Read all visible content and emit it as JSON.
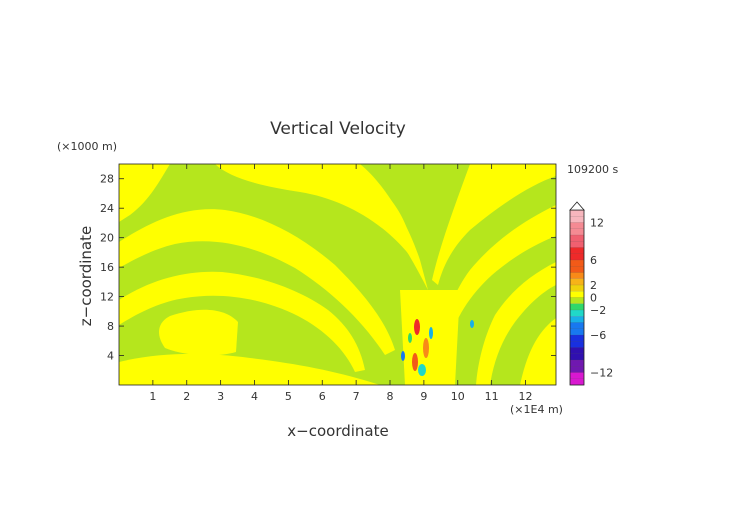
{
  "chart_data": {
    "type": "heatmap",
    "title": "Vertical Velocity",
    "xlabel": "x−coordinate",
    "ylabel": "z−coordinate",
    "x_scale_label": "(×1E4 m)",
    "y_scale_label": "(×1000 m)",
    "time_label": "109200 s",
    "xlim": [
      0,
      12.9
    ],
    "ylim": [
      0,
      30
    ],
    "x_ticks": [
      "1",
      "2",
      "3",
      "4",
      "5",
      "6",
      "7",
      "8",
      "9",
      "10",
      "11",
      "12"
    ],
    "y_ticks": [
      "4",
      "8",
      "12",
      "16",
      "20",
      "24",
      "28"
    ],
    "colorbar": {
      "range": [
        -14,
        14
      ],
      "extend": "max",
      "tick_labels": [
        "12",
        "6",
        "2",
        "0",
        "−2",
        "−6",
        "−12"
      ],
      "tick_values": [
        12,
        6,
        2,
        0,
        -2,
        -6,
        -12
      ],
      "level_colors": [
        {
          "from": 12,
          "to": 14,
          "color": "#f7b6bd"
        },
        {
          "from": 10,
          "to": 12,
          "color": "#f58a93"
        },
        {
          "from": 8,
          "to": 10,
          "color": "#f06070"
        },
        {
          "from": 6,
          "to": 8,
          "color": "#ee2a2a"
        },
        {
          "from": 4,
          "to": 6,
          "color": "#f25a18"
        },
        {
          "from": 3,
          "to": 4,
          "color": "#f88a18"
        },
        {
          "from": 2,
          "to": 3,
          "color": "#f7b318"
        },
        {
          "from": 1,
          "to": 2,
          "color": "#f0d20c"
        },
        {
          "from": 0,
          "to": 1,
          "color": "#ffff00"
        },
        {
          "from": -1,
          "to": 0,
          "color": "#b5e61d"
        },
        {
          "from": -2,
          "to": -1,
          "color": "#30d86a"
        },
        {
          "from": -3,
          "to": -2,
          "color": "#20d8c8"
        },
        {
          "from": -4,
          "to": -3,
          "color": "#18b0e8"
        },
        {
          "from": -6,
          "to": -4,
          "color": "#1878f0"
        },
        {
          "from": -8,
          "to": -6,
          "color": "#1830e0"
        },
        {
          "from": -10,
          "to": -8,
          "color": "#3010b0"
        },
        {
          "from": -12,
          "to": -10,
          "color": "#7018b0"
        },
        {
          "from": -14,
          "to": -12,
          "color": "#d818d0"
        }
      ]
    },
    "colors": {
      "positive": "#ffff00",
      "negative": "#b5e61d"
    }
  }
}
